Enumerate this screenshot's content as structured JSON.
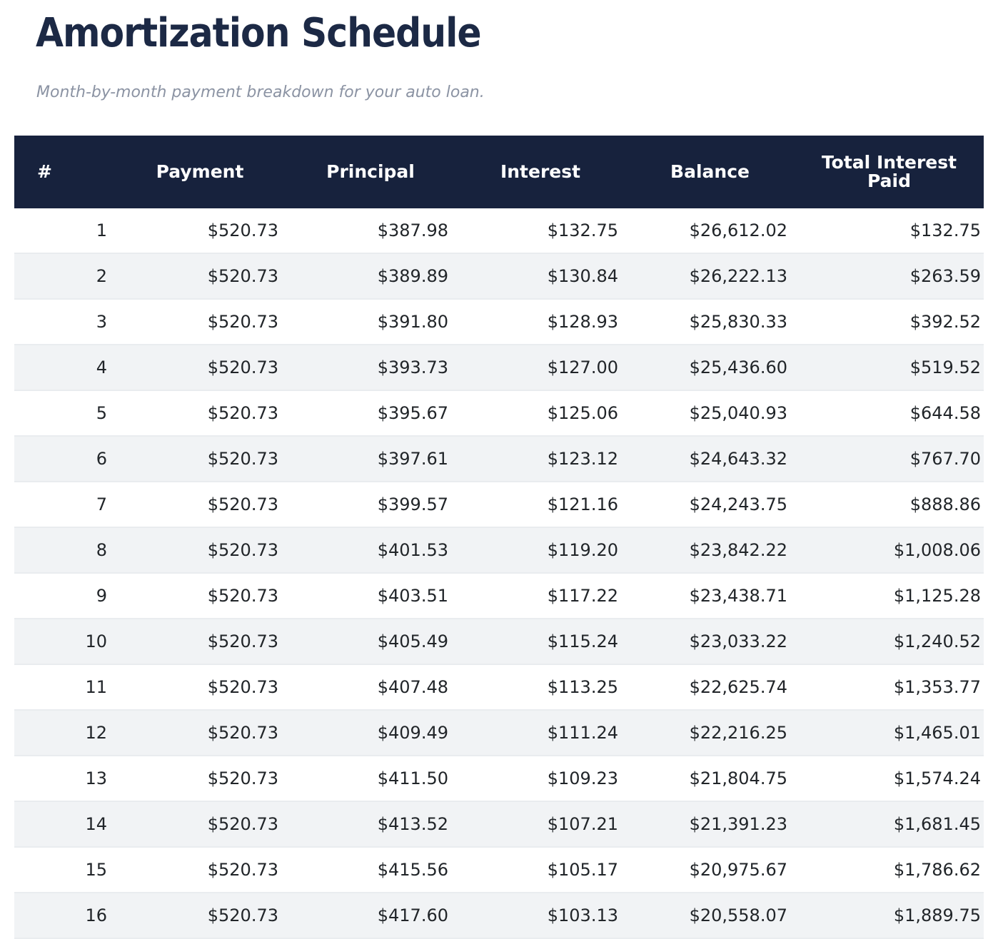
{
  "page": {
    "title": "Amortization Schedule",
    "subtitle": "Month-by-month payment breakdown for your auto loan."
  },
  "table": {
    "columns": [
      "#",
      "Payment",
      "Principal",
      "Interest",
      "Balance",
      "Total Interest Paid"
    ],
    "rows": [
      [
        "1",
        "$520.73",
        "$387.98",
        "$132.75",
        "$26,612.02",
        "$132.75"
      ],
      [
        "2",
        "$520.73",
        "$389.89",
        "$130.84",
        "$26,222.13",
        "$263.59"
      ],
      [
        "3",
        "$520.73",
        "$391.80",
        "$128.93",
        "$25,830.33",
        "$392.52"
      ],
      [
        "4",
        "$520.73",
        "$393.73",
        "$127.00",
        "$25,436.60",
        "$519.52"
      ],
      [
        "5",
        "$520.73",
        "$395.67",
        "$125.06",
        "$25,040.93",
        "$644.58"
      ],
      [
        "6",
        "$520.73",
        "$397.61",
        "$123.12",
        "$24,643.32",
        "$767.70"
      ],
      [
        "7",
        "$520.73",
        "$399.57",
        "$121.16",
        "$24,243.75",
        "$888.86"
      ],
      [
        "8",
        "$520.73",
        "$401.53",
        "$119.20",
        "$23,842.22",
        "$1,008.06"
      ],
      [
        "9",
        "$520.73",
        "$403.51",
        "$117.22",
        "$23,438.71",
        "$1,125.28"
      ],
      [
        "10",
        "$520.73",
        "$405.49",
        "$115.24",
        "$23,033.22",
        "$1,240.52"
      ],
      [
        "11",
        "$520.73",
        "$407.48",
        "$113.25",
        "$22,625.74",
        "$1,353.77"
      ],
      [
        "12",
        "$520.73",
        "$409.49",
        "$111.24",
        "$22,216.25",
        "$1,465.01"
      ],
      [
        "13",
        "$520.73",
        "$411.50",
        "$109.23",
        "$21,804.75",
        "$1,574.24"
      ],
      [
        "14",
        "$520.73",
        "$413.52",
        "$107.21",
        "$21,391.23",
        "$1,681.45"
      ],
      [
        "15",
        "$520.73",
        "$415.56",
        "$105.17",
        "$20,975.67",
        "$1,786.62"
      ],
      [
        "16",
        "$520.73",
        "$417.60",
        "$103.13",
        "$20,558.07",
        "$1,889.75"
      ]
    ]
  },
  "colors": {
    "header_background": "#17223d",
    "header_text": "#ffffff",
    "title_text": "#1c2945",
    "subtitle_text": "#8b93a3",
    "row_alternate": "#f1f3f5",
    "row_border": "#e9ecef",
    "cell_text": "#212529"
  }
}
